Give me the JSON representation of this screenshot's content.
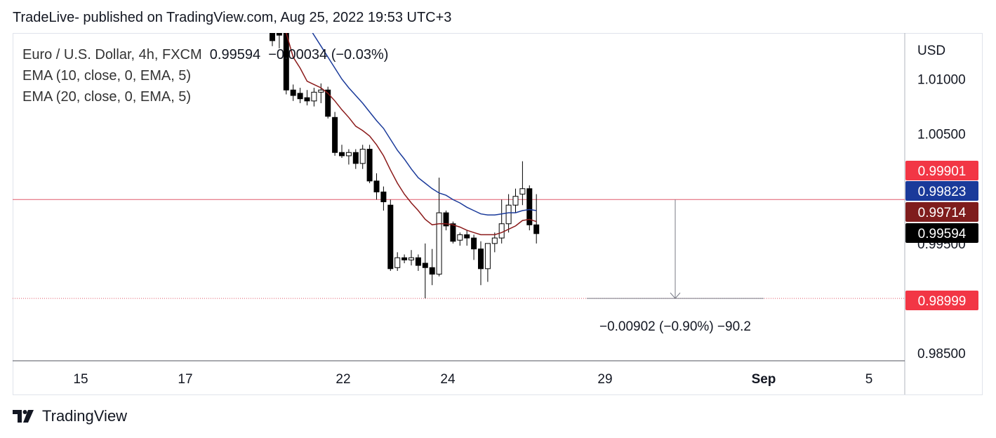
{
  "header": {
    "text": "TradeLive- published on TradingView.com, Aug 25, 2022 19:53 UTC+3"
  },
  "legend": {
    "symbol": "Euro / U.S. Dollar, 4h, FXCM",
    "last_value": "0.99594",
    "change": "−0.00034 (−0.03%)",
    "ema10": "EMA (10, close, 0, EMA, 5)",
    "ema20": "EMA (20, close, 0, EMA, 5)"
  },
  "footer": {
    "brand": "TradingView"
  },
  "colors": {
    "up_fill": "#ffffff",
    "down_fill": "#000000",
    "candle_border": "#000000",
    "ema10": "#8b1a1a",
    "ema20": "#1a3a9a",
    "label_red": "#f23645",
    "label_blue": "#1a3a9a",
    "label_darkred": "#7f1d1d",
    "label_black": "#000000",
    "hline": "#e05a6a"
  },
  "chart_data": {
    "type": "candlestick",
    "currency_label": "USD",
    "y_axis": {
      "ticks": [
        "1.01000",
        "1.00500",
        "0.99500",
        "0.98500"
      ],
      "tick_values": [
        1.01,
        1.005,
        0.995,
        0.985
      ],
      "range": [
        0.9843,
        1.0142
      ]
    },
    "x_axis": {
      "ticks": [
        "15",
        "17",
        "22",
        "24",
        "29",
        "Sep",
        "5"
      ]
    },
    "price_labels": [
      {
        "text": "0.99901",
        "value": 0.99901,
        "color": "red"
      },
      {
        "text": "0.99823",
        "value": 0.99823,
        "color": "blue"
      },
      {
        "text": "0.99714",
        "value": 0.99714,
        "color": "darkred"
      },
      {
        "text": "0.99594",
        "value": 0.99594,
        "color": "black"
      },
      {
        "text": "0.98999",
        "value": 0.98999,
        "color": "red"
      }
    ],
    "hlines": [
      {
        "value": 0.99901,
        "style": "solid"
      },
      {
        "value": 0.98999,
        "style": "dotted"
      }
    ],
    "measure": {
      "from": 0.99901,
      "to": 0.98999,
      "text": "−0.00902 (−0.90%) −90.2"
    },
    "candles": [
      {
        "o": 1.0185,
        "h": 1.0195,
        "l": 1.013,
        "c": 1.0135
      },
      {
        "o": 1.0155,
        "h": 1.0165,
        "l": 1.0128,
        "c": 1.014
      },
      {
        "o": 1.015,
        "h": 1.016,
        "l": 1.0086,
        "c": 1.009
      },
      {
        "o": 1.009,
        "h": 1.0095,
        "l": 1.008,
        "c": 1.0085
      },
      {
        "o": 1.0087,
        "h": 1.0092,
        "l": 1.0078,
        "c": 1.0082
      },
      {
        "o": 1.0083,
        "h": 1.009,
        "l": 1.0076,
        "c": 1.008
      },
      {
        "o": 1.008,
        "h": 1.0092,
        "l": 1.0075,
        "c": 1.0088
      },
      {
        "o": 1.0088,
        "h": 1.0096,
        "l": 1.0078,
        "c": 1.009
      },
      {
        "o": 1.009,
        "h": 1.0093,
        "l": 1.0064,
        "c": 1.0066
      },
      {
        "o": 1.0065,
        "h": 1.007,
        "l": 1.003,
        "c": 1.0033
      },
      {
        "o": 1.0033,
        "h": 1.004,
        "l": 1.0028,
        "c": 1.003
      },
      {
        "o": 1.003,
        "h": 1.0036,
        "l": 1.0022,
        "c": 1.0033
      },
      {
        "o": 1.0033,
        "h": 1.0036,
        "l": 1.0018,
        "c": 1.0023
      },
      {
        "o": 1.0023,
        "h": 1.004,
        "l": 1.0018,
        "c": 1.0036
      },
      {
        "o": 1.0036,
        "h": 1.004,
        "l": 1.0005,
        "c": 1.0007
      },
      {
        "o": 1.0007,
        "h": 1.0014,
        "l": 0.999,
        "c": 0.9997
      },
      {
        "o": 0.9997,
        "h": 1.0002,
        "l": 0.998,
        "c": 0.9988
      },
      {
        "o": 0.9985,
        "h": 0.999,
        "l": 0.9925,
        "c": 0.9927
      },
      {
        "o": 0.9928,
        "h": 0.9942,
        "l": 0.9925,
        "c": 0.9937
      },
      {
        "o": 0.9937,
        "h": 0.994,
        "l": 0.9932,
        "c": 0.9935
      },
      {
        "o": 0.9935,
        "h": 0.9944,
        "l": 0.993,
        "c": 0.9937
      },
      {
        "o": 0.9937,
        "h": 0.994,
        "l": 0.9925,
        "c": 0.993
      },
      {
        "o": 0.9932,
        "h": 0.995,
        "l": 0.99,
        "c": 0.9928
      },
      {
        "o": 0.9928,
        "h": 0.9945,
        "l": 0.9912,
        "c": 0.9922
      },
      {
        "o": 0.9922,
        "h": 1.001,
        "l": 0.992,
        "c": 0.9978
      },
      {
        "o": 0.9978,
        "h": 0.998,
        "l": 0.9962,
        "c": 0.9966
      },
      {
        "o": 0.9968,
        "h": 0.997,
        "l": 0.995,
        "c": 0.9952
      },
      {
        "o": 0.9953,
        "h": 0.996,
        "l": 0.9948,
        "c": 0.9958
      },
      {
        "o": 0.9958,
        "h": 0.9962,
        "l": 0.9948,
        "c": 0.9955
      },
      {
        "o": 0.9955,
        "h": 0.9958,
        "l": 0.9935,
        "c": 0.9945
      },
      {
        "o": 0.9945,
        "h": 0.9952,
        "l": 0.9912,
        "c": 0.9927
      },
      {
        "o": 0.9927,
        "h": 0.995,
        "l": 0.9915,
        "c": 0.995
      },
      {
        "o": 0.995,
        "h": 0.996,
        "l": 0.9942,
        "c": 0.9955
      },
      {
        "o": 0.9955,
        "h": 0.999,
        "l": 0.995,
        "c": 0.9968
      },
      {
        "o": 0.9968,
        "h": 0.9995,
        "l": 0.996,
        "c": 0.9985
      },
      {
        "o": 0.9985,
        "h": 1.0,
        "l": 0.9978,
        "c": 0.9993
      },
      {
        "o": 0.9995,
        "h": 1.0025,
        "l": 0.9985,
        "c": 1.0
      },
      {
        "o": 1.0,
        "h": 1.0003,
        "l": 0.9962,
        "c": 0.9967
      },
      {
        "o": 0.9967,
        "h": 0.9995,
        "l": 0.995,
        "c": 0.9959
      }
    ],
    "ema10": [
      1.0165,
      1.016,
      1.0142,
      1.012,
      1.011,
      1.0098,
      1.0095,
      1.0092,
      1.0087,
      1.008,
      1.0072,
      1.0065,
      1.0057,
      1.0053,
      1.0048,
      1.004,
      1.003,
      1.0017,
      1.0005,
      0.9995,
      0.9987,
      0.998,
      0.9972,
      0.9967,
      0.9968,
      0.9968,
      0.9967,
      0.9965,
      0.9962,
      0.996,
      0.9958,
      0.9958,
      0.9958,
      0.996,
      0.9963,
      0.9966,
      0.9971,
      0.9972,
      0.997
    ],
    "ema20": [
      1.02,
      1.0195,
      1.0185,
      1.017,
      1.016,
      1.015,
      1.014,
      1.013,
      1.012,
      1.011,
      1.01,
      1.0092,
      1.0085,
      1.0078,
      1.007,
      1.0062,
      1.0055,
      1.0045,
      1.0035,
      1.0027,
      1.0018,
      1.001,
      1.0005,
      1.0,
      0.9996,
      0.9994,
      0.999,
      0.9987,
      0.9983,
      0.998,
      0.9977,
      0.9976,
      0.9976,
      0.9977,
      0.9978,
      0.9978,
      0.998,
      0.9981,
      0.998
    ]
  }
}
